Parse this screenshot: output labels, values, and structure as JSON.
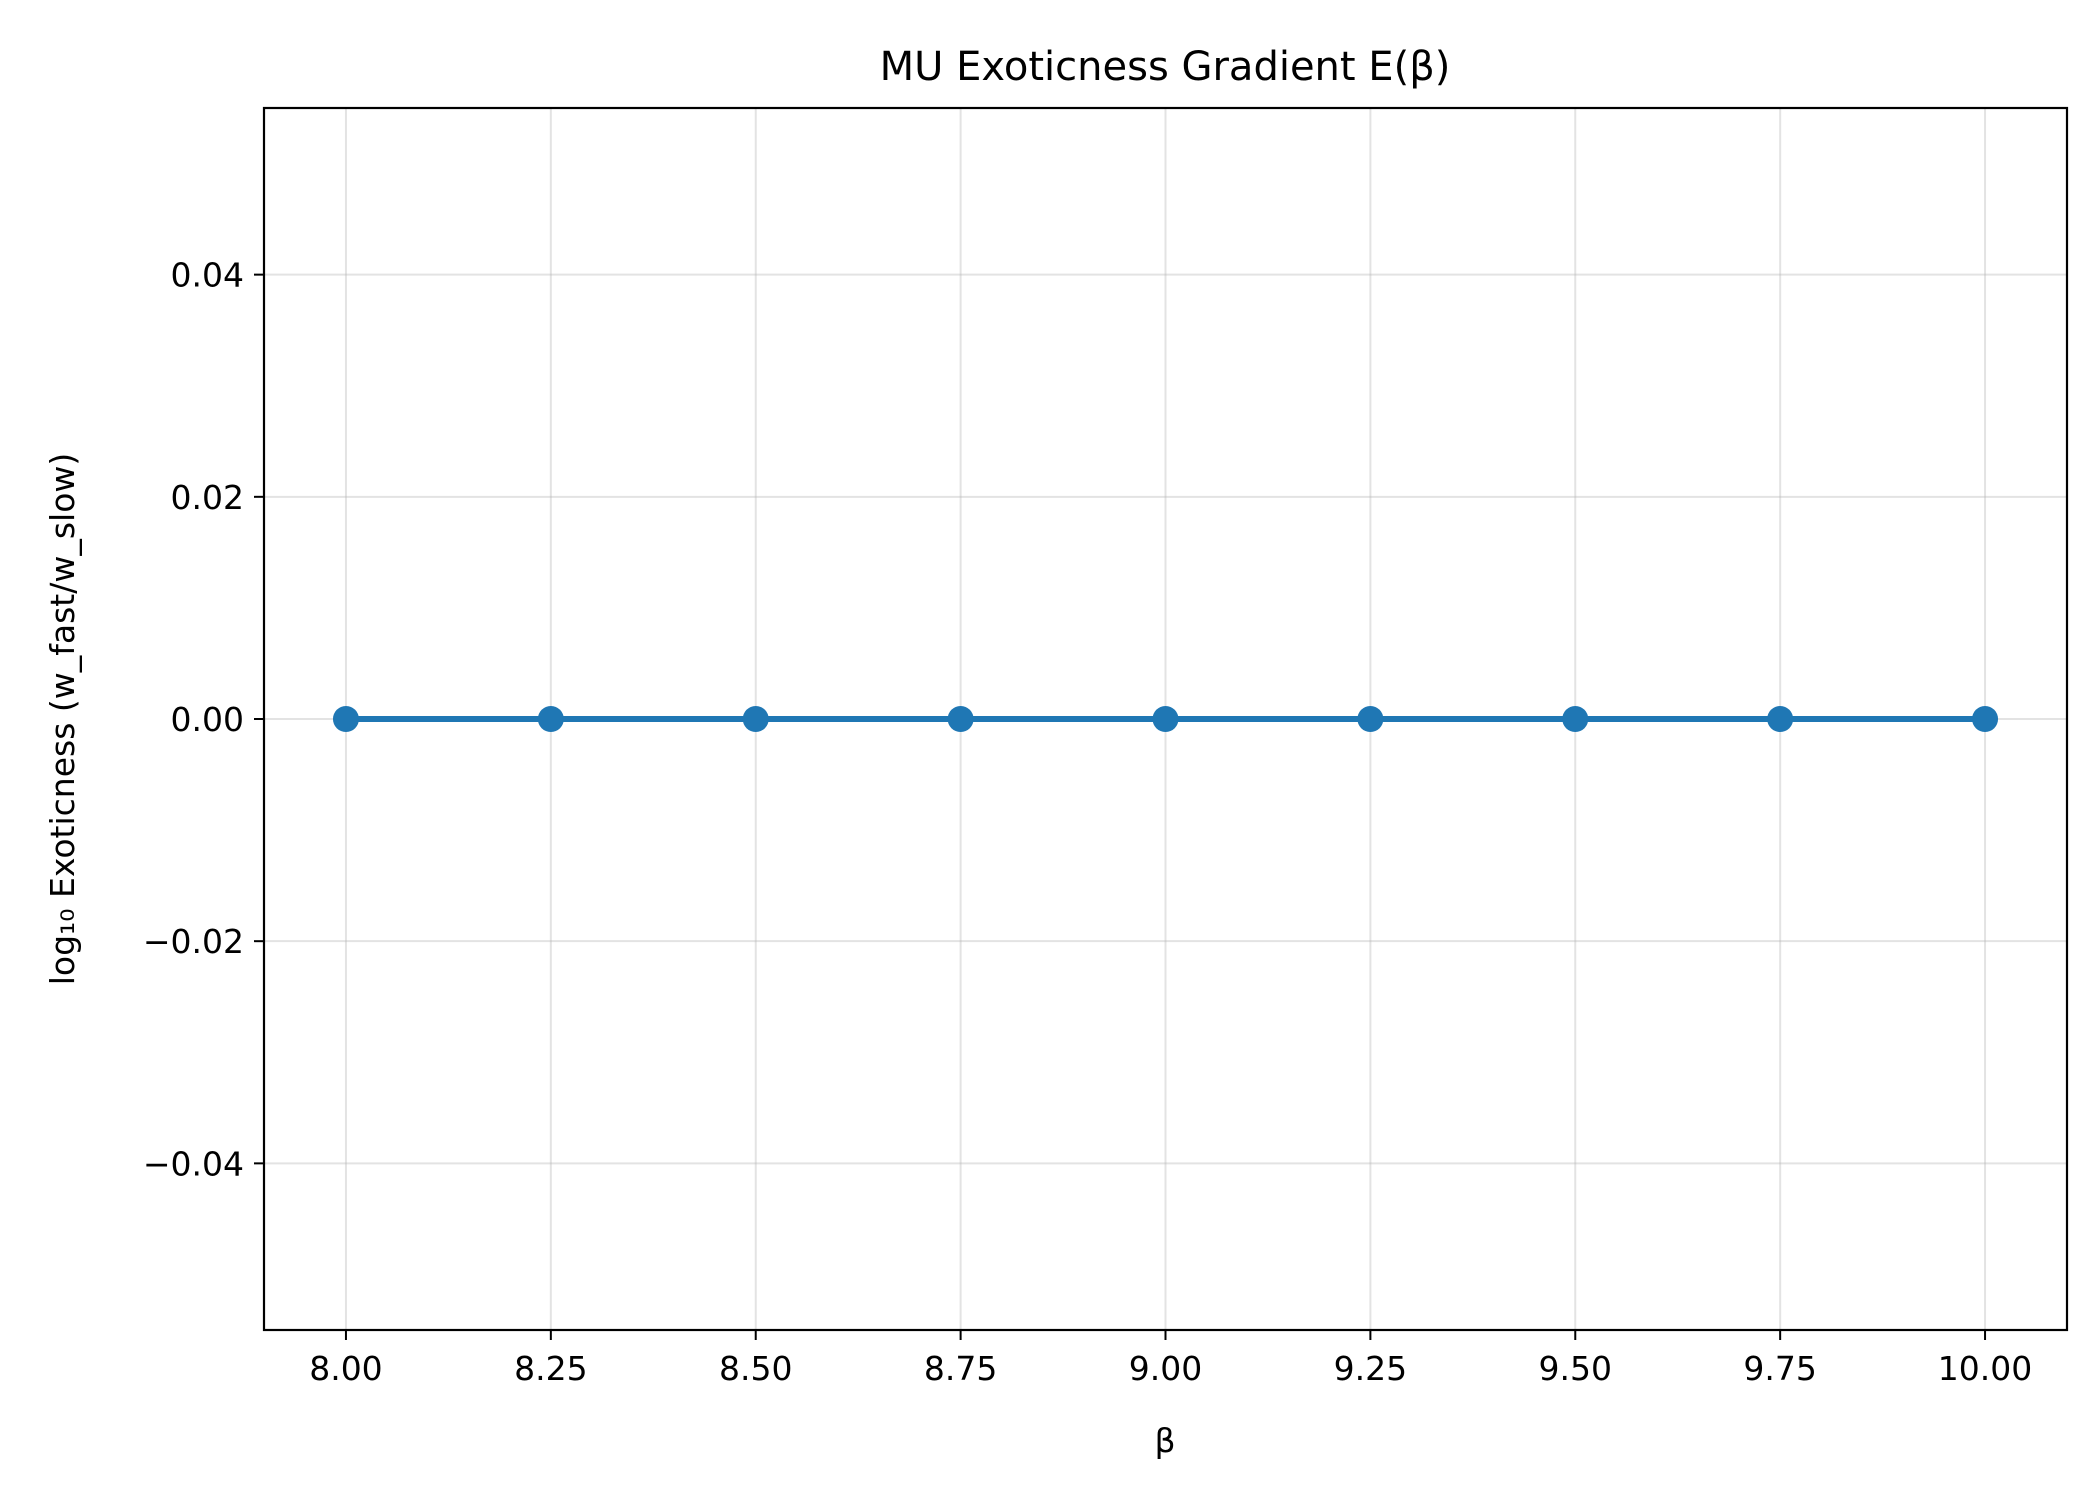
{
  "chart_data": {
    "type": "line",
    "title": "MU Exoticness Gradient E(β)",
    "xlabel": "β",
    "ylabel": "log₁₀ Exoticness (w_fast/w_slow)",
    "xlim": [
      7.9,
      10.1
    ],
    "ylim": [
      -0.055,
      0.055
    ],
    "xticks": [
      8.0,
      8.25,
      8.5,
      8.75,
      9.0,
      9.25,
      9.5,
      9.75,
      10.0
    ],
    "xtick_labels": [
      "8.00",
      "8.25",
      "8.50",
      "8.75",
      "9.00",
      "9.25",
      "9.50",
      "9.75",
      "10.00"
    ],
    "yticks": [
      0.04,
      0.02,
      0.0,
      -0.02,
      -0.04
    ],
    "ytick_labels": [
      "0.04",
      "0.02",
      "0.00",
      "−0.02",
      "−0.04"
    ],
    "grid": true,
    "series": [
      {
        "x": [
          8.0,
          8.25,
          8.5,
          8.75,
          9.0,
          9.25,
          9.5,
          9.75,
          10.0
        ],
        "y": [
          0,
          0,
          0,
          0,
          0,
          0,
          0,
          0,
          0
        ],
        "color": "#1f77b4",
        "marker": "circle"
      }
    ]
  }
}
